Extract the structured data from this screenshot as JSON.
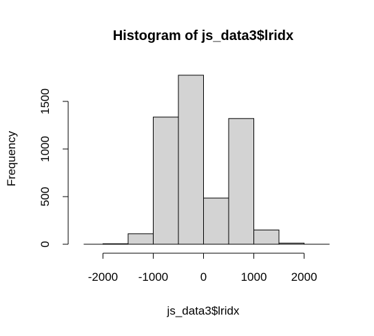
{
  "chart_data": {
    "type": "bar",
    "title": "Histogram of js_data3$lridx",
    "xlabel": "js_data3$lridx",
    "ylabel": "Frequency",
    "bins": [
      {
        "start": -2000,
        "end": -1500,
        "count": 5
      },
      {
        "start": -1500,
        "end": -1000,
        "count": 110
      },
      {
        "start": -1000,
        "end": -500,
        "count": 1335
      },
      {
        "start": -500,
        "end": 0,
        "count": 1775
      },
      {
        "start": 0,
        "end": 500,
        "count": 485
      },
      {
        "start": 500,
        "end": 1000,
        "count": 1320
      },
      {
        "start": 1000,
        "end": 1500,
        "count": 150
      },
      {
        "start": 1500,
        "end": 2000,
        "count": 12
      }
    ],
    "x_ticks": [
      -2000,
      -1000,
      0,
      1000,
      2000
    ],
    "x_tick_labels": [
      "-2000",
      "-1000",
      "0",
      "1000",
      "2000"
    ],
    "y_ticks": [
      0,
      500,
      1000,
      1500
    ],
    "y_tick_labels": [
      "0",
      "500",
      "1000",
      "1500"
    ],
    "xlim": [
      -2500,
      2500
    ],
    "ylim": [
      0,
      1775
    ],
    "colors": {
      "bar_fill": "#d3d3d3",
      "bar_stroke": "#000000"
    }
  }
}
